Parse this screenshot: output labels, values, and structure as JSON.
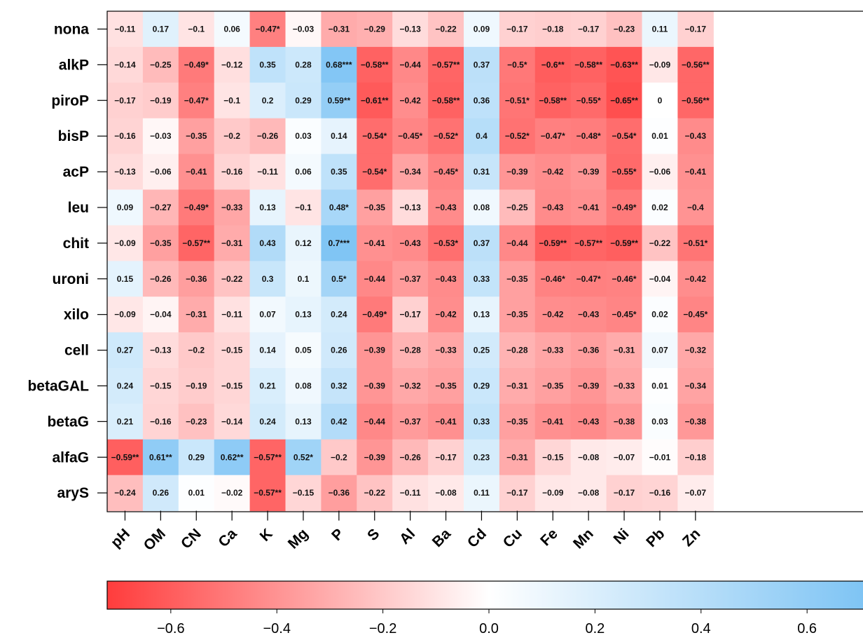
{
  "chart_data": {
    "type": "heatmap",
    "rows": [
      "nona",
      "alkP",
      "piroP",
      "bisP",
      "acP",
      "leu",
      "chit",
      "uroni",
      "xilo",
      "cell",
      "betaGAL",
      "betaG",
      "alfaG",
      "aryS"
    ],
    "columns": [
      "pH",
      "OM",
      "CN",
      "Ca",
      "K",
      "Mg",
      "P",
      "S",
      "Al",
      "Ba",
      "Cd",
      "Cu",
      "Fe",
      "Mn",
      "Ni",
      "Pb",
      "Zn"
    ],
    "values": [
      [
        -0.11,
        0.17,
        -0.1,
        0.06,
        -0.47,
        -0.03,
        -0.31,
        -0.29,
        -0.13,
        -0.22,
        0.09,
        -0.17,
        -0.18,
        -0.17,
        -0.23,
        0.11,
        -0.17
      ],
      [
        -0.14,
        -0.25,
        -0.49,
        -0.12,
        0.35,
        0.28,
        0.68,
        -0.58,
        -0.44,
        -0.57,
        0.37,
        -0.5,
        -0.6,
        -0.58,
        -0.63,
        -0.09,
        -0.56
      ],
      [
        -0.17,
        -0.19,
        -0.47,
        -0.1,
        0.2,
        0.29,
        0.59,
        -0.61,
        -0.42,
        -0.58,
        0.36,
        -0.51,
        -0.58,
        -0.55,
        -0.65,
        0,
        -0.56
      ],
      [
        -0.16,
        -0.03,
        -0.35,
        -0.2,
        -0.26,
        0.03,
        0.14,
        -0.54,
        -0.45,
        -0.52,
        0.4,
        -0.52,
        -0.47,
        -0.48,
        -0.54,
        0.01,
        -0.43
      ],
      [
        -0.13,
        -0.06,
        -0.41,
        -0.16,
        -0.11,
        0.06,
        0.35,
        -0.54,
        -0.34,
        -0.45,
        0.31,
        -0.39,
        -0.42,
        -0.39,
        -0.55,
        -0.06,
        -0.41
      ],
      [
        0.09,
        -0.27,
        -0.49,
        -0.33,
        0.13,
        -0.1,
        0.48,
        -0.35,
        -0.13,
        -0.43,
        0.08,
        -0.25,
        -0.43,
        -0.41,
        -0.49,
        0.02,
        -0.4
      ],
      [
        -0.09,
        -0.35,
        -0.57,
        -0.31,
        0.43,
        0.12,
        0.7,
        -0.41,
        -0.43,
        -0.53,
        0.37,
        -0.44,
        -0.59,
        -0.57,
        -0.59,
        -0.22,
        -0.51
      ],
      [
        0.15,
        -0.26,
        -0.36,
        -0.22,
        0.3,
        0.1,
        0.5,
        -0.44,
        -0.37,
        -0.43,
        0.33,
        -0.35,
        -0.46,
        -0.47,
        -0.46,
        -0.04,
        -0.42
      ],
      [
        -0.09,
        -0.04,
        -0.31,
        -0.11,
        0.07,
        0.13,
        0.24,
        -0.49,
        -0.17,
        -0.42,
        0.13,
        -0.35,
        -0.42,
        -0.43,
        -0.45,
        0.02,
        -0.45
      ],
      [
        0.27,
        -0.13,
        -0.2,
        -0.15,
        0.14,
        0.05,
        0.26,
        -0.39,
        -0.28,
        -0.33,
        0.25,
        -0.28,
        -0.33,
        -0.36,
        -0.31,
        0.07,
        -0.32
      ],
      [
        0.24,
        -0.15,
        -0.19,
        -0.15,
        0.21,
        0.08,
        0.32,
        -0.39,
        -0.32,
        -0.35,
        0.29,
        -0.31,
        -0.35,
        -0.39,
        -0.33,
        0.01,
        -0.34
      ],
      [
        0.21,
        -0.16,
        -0.23,
        -0.14,
        0.24,
        0.13,
        0.42,
        -0.44,
        -0.37,
        -0.41,
        0.33,
        -0.35,
        -0.41,
        -0.43,
        -0.38,
        0.03,
        -0.38
      ],
      [
        -0.59,
        0.61,
        0.29,
        0.62,
        -0.57,
        0.52,
        -0.2,
        -0.39,
        -0.26,
        -0.17,
        0.23,
        -0.31,
        -0.15,
        -0.08,
        -0.07,
        -0.01,
        -0.18
      ],
      [
        -0.24,
        0.26,
        0.01,
        -0.02,
        -0.57,
        -0.15,
        -0.36,
        -0.22,
        -0.11,
        -0.08,
        0.11,
        -0.17,
        -0.09,
        -0.08,
        -0.17,
        -0.16,
        -0.07
      ]
    ],
    "labels": [
      [
        "−0.11",
        "0.17",
        "−0.1",
        "0.06",
        "−0.47*",
        "−0.03",
        "−0.31",
        "−0.29",
        "−0.13",
        "−0.22",
        "0.09",
        "−0.17",
        "−0.18",
        "−0.17",
        "−0.23",
        "0.11",
        "−0.17"
      ],
      [
        "−0.14",
        "−0.25",
        "−0.49*",
        "−0.12",
        "0.35",
        "0.28",
        "0.68***",
        "−0.58**",
        "−0.44",
        "−0.57**",
        "0.37",
        "−0.5*",
        "−0.6**",
        "−0.58**",
        "−0.63**",
        "−0.09",
        "−0.56**"
      ],
      [
        "−0.17",
        "−0.19",
        "−0.47*",
        "−0.1",
        "0.2",
        "0.29",
        "0.59**",
        "−0.61**",
        "−0.42",
        "−0.58**",
        "0.36",
        "−0.51*",
        "−0.58**",
        "−0.55*",
        "−0.65**",
        "0",
        "−0.56**"
      ],
      [
        "−0.16",
        "−0.03",
        "−0.35",
        "−0.2",
        "−0.26",
        "0.03",
        "0.14",
        "−0.54*",
        "−0.45*",
        "−0.52*",
        "0.4",
        "−0.52*",
        "−0.47*",
        "−0.48*",
        "−0.54*",
        "0.01",
        "−0.43"
      ],
      [
        "−0.13",
        "−0.06",
        "−0.41",
        "−0.16",
        "−0.11",
        "0.06",
        "0.35",
        "−0.54*",
        "−0.34",
        "−0.45*",
        "0.31",
        "−0.39",
        "−0.42",
        "−0.39",
        "−0.55*",
        "−0.06",
        "−0.41"
      ],
      [
        "0.09",
        "−0.27",
        "−0.49*",
        "−0.33",
        "0.13",
        "−0.1",
        "0.48*",
        "−0.35",
        "−0.13",
        "−0.43",
        "0.08",
        "−0.25",
        "−0.43",
        "−0.41",
        "−0.49*",
        "0.02",
        "−0.4"
      ],
      [
        "−0.09",
        "−0.35",
        "−0.57**",
        "−0.31",
        "0.43",
        "0.12",
        "0.7***",
        "−0.41",
        "−0.43",
        "−0.53*",
        "0.37",
        "−0.44",
        "−0.59**",
        "−0.57**",
        "−0.59**",
        "−0.22",
        "−0.51*"
      ],
      [
        "0.15",
        "−0.26",
        "−0.36",
        "−0.22",
        "0.3",
        "0.1",
        "0.5*",
        "−0.44",
        "−0.37",
        "−0.43",
        "0.33",
        "−0.35",
        "−0.46*",
        "−0.47*",
        "−0.46*",
        "−0.04",
        "−0.42"
      ],
      [
        "−0.09",
        "−0.04",
        "−0.31",
        "−0.11",
        "0.07",
        "0.13",
        "0.24",
        "−0.49*",
        "−0.17",
        "−0.42",
        "0.13",
        "−0.35",
        "−0.42",
        "−0.43",
        "−0.45*",
        "0.02",
        "−0.45*"
      ],
      [
        "0.27",
        "−0.13",
        "−0.2",
        "−0.15",
        "0.14",
        "0.05",
        "0.26",
        "−0.39",
        "−0.28",
        "−0.33",
        "0.25",
        "−0.28",
        "−0.33",
        "−0.36",
        "−0.31",
        "0.07",
        "−0.32"
      ],
      [
        "0.24",
        "−0.15",
        "−0.19",
        "−0.15",
        "0.21",
        "0.08",
        "0.32",
        "−0.39",
        "−0.32",
        "−0.35",
        "0.29",
        "−0.31",
        "−0.35",
        "−0.39",
        "−0.33",
        "0.01",
        "−0.34"
      ],
      [
        "0.21",
        "−0.16",
        "−0.23",
        "−0.14",
        "0.24",
        "0.13",
        "0.42",
        "−0.44",
        "−0.37",
        "−0.41",
        "0.33",
        "−0.35",
        "−0.41",
        "−0.43",
        "−0.38",
        "0.03",
        "−0.38"
      ],
      [
        "−0.59**",
        "0.61**",
        "0.29",
        "0.62**",
        "−0.57**",
        "0.52*",
        "−0.2",
        "−0.39",
        "−0.26",
        "−0.17",
        "0.23",
        "−0.31",
        "−0.15",
        "−0.08",
        "−0.07",
        "−0.01",
        "−0.18"
      ],
      [
        "−0.24",
        "0.26",
        "0.01",
        "−0.02",
        "−0.57**",
        "−0.15",
        "−0.36",
        "−0.22",
        "−0.11",
        "−0.08",
        "0.11",
        "−0.17",
        "−0.09",
        "−0.08",
        "−0.17",
        "−0.16",
        "−0.07"
      ]
    ],
    "colorbar": {
      "range": [
        -0.72,
        0.72
      ],
      "ticks": [
        -0.6,
        -0.4,
        -0.2,
        0.0,
        0.2,
        0.4,
        0.6
      ],
      "tick_labels": [
        "−0.6",
        "−0.4",
        "−0.2",
        "0.0",
        "0.2",
        "0.4",
        "0.6"
      ],
      "colors": {
        "negative": "#ff3c3c",
        "zero": "#ffffff",
        "positive": "#7cc3f4"
      },
      "placement": "bottom"
    },
    "grid": false
  }
}
